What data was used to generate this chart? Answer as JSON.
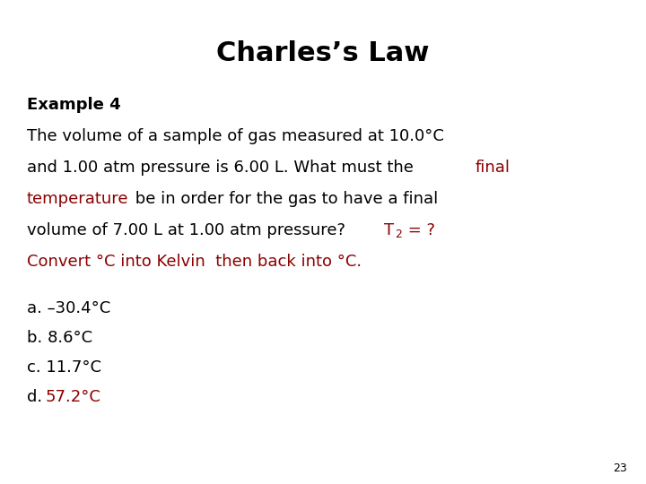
{
  "title": "Charles’s Law",
  "title_fontsize": 22,
  "title_fontweight": "bold",
  "background_color": "#ffffff",
  "black_color": "#000000",
  "red_color": "#8B0000",
  "example_fontsize": 13,
  "example_fontweight": "bold",
  "body_fontsize": 13,
  "answer_fontsize": 13,
  "page_number": "23",
  "page_number_fontsize": 9
}
